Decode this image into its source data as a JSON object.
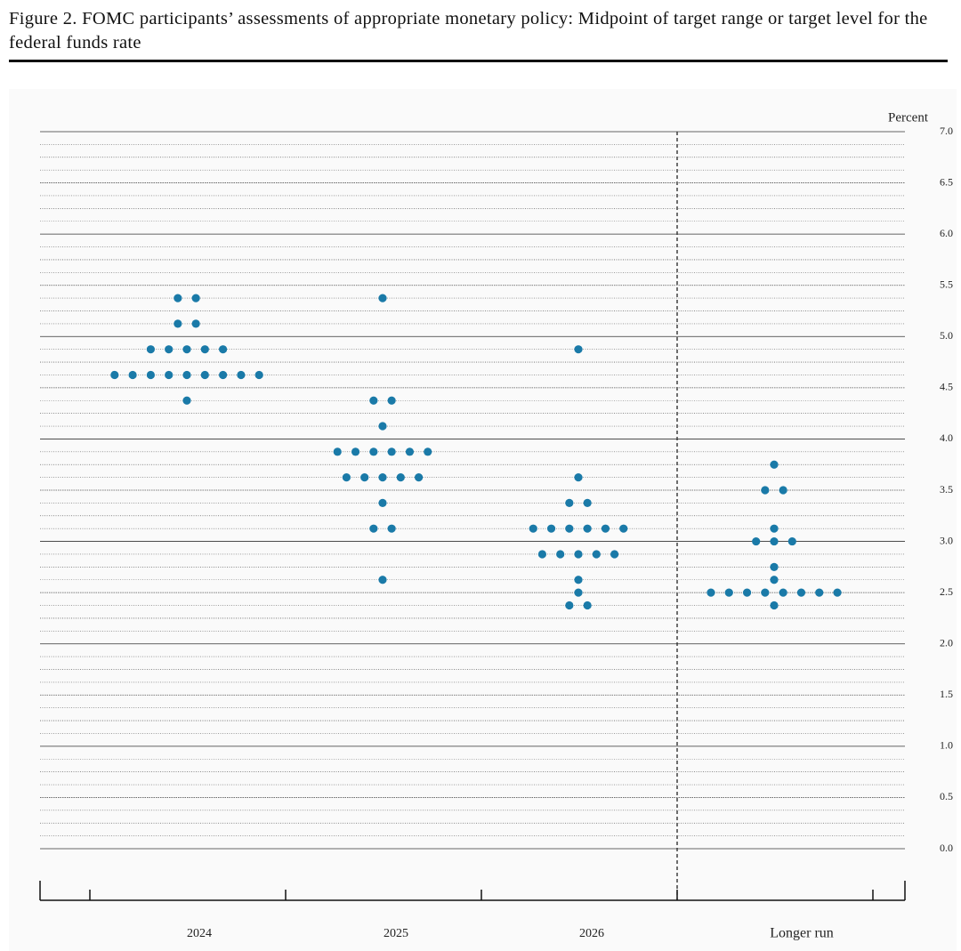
{
  "chart_data": {
    "type": "dot",
    "title": "Figure 2.  FOMC participants’ assessments of appropriate monetary policy: Midpoint of target range or target level for the federal funds rate",
    "y_label": "Percent",
    "categories": [
      "2024",
      "2025",
      "2026",
      "Longer run"
    ],
    "values": [
      [
        5.375,
        5.375,
        5.125,
        5.125,
        4.875,
        4.875,
        4.875,
        4.875,
        4.875,
        4.625,
        4.625,
        4.625,
        4.625,
        4.625,
        4.625,
        4.625,
        4.625,
        4.625,
        4.375
      ],
      [
        5.375,
        4.375,
        4.375,
        4.125,
        3.875,
        3.875,
        3.875,
        3.875,
        3.875,
        3.875,
        3.625,
        3.625,
        3.625,
        3.625,
        3.625,
        3.375,
        3.125,
        3.125,
        2.625
      ],
      [
        4.875,
        3.625,
        3.375,
        3.375,
        3.125,
        3.125,
        3.125,
        3.125,
        3.125,
        3.125,
        2.875,
        2.875,
        2.875,
        2.875,
        2.875,
        2.625,
        2.5,
        2.375,
        2.375
      ],
      [
        3.75,
        3.5,
        3.5,
        3.125,
        3.0,
        3.0,
        3.0,
        2.75,
        2.625,
        2.5,
        2.5,
        2.5,
        2.5,
        2.5,
        2.5,
        2.5,
        2.5,
        2.375
      ]
    ],
    "color": "#1a7aa8",
    "ylim": [
      0,
      7
    ],
    "yticks": [
      {
        "value": 0,
        "label": "0.0"
      },
      {
        "value": 0.5,
        "label": "0.5"
      },
      {
        "value": 1,
        "label": "1.0"
      },
      {
        "value": 1.5,
        "label": "1.5"
      },
      {
        "value": 2,
        "label": "2.0"
      },
      {
        "value": 2.5,
        "label": "2.5"
      },
      {
        "value": 3,
        "label": "3.0"
      },
      {
        "value": 3.5,
        "label": "3.5"
      },
      {
        "value": 4,
        "label": "4.0"
      },
      {
        "value": 4.5,
        "label": "4.5"
      },
      {
        "value": 5,
        "label": "5.0"
      },
      {
        "value": 5.5,
        "label": "5.5"
      },
      {
        "value": 6,
        "label": "6.0"
      },
      {
        "value": 6.5,
        "label": "6.5"
      },
      {
        "value": 7,
        "label": "7.0"
      }
    ],
    "grid": true
  }
}
